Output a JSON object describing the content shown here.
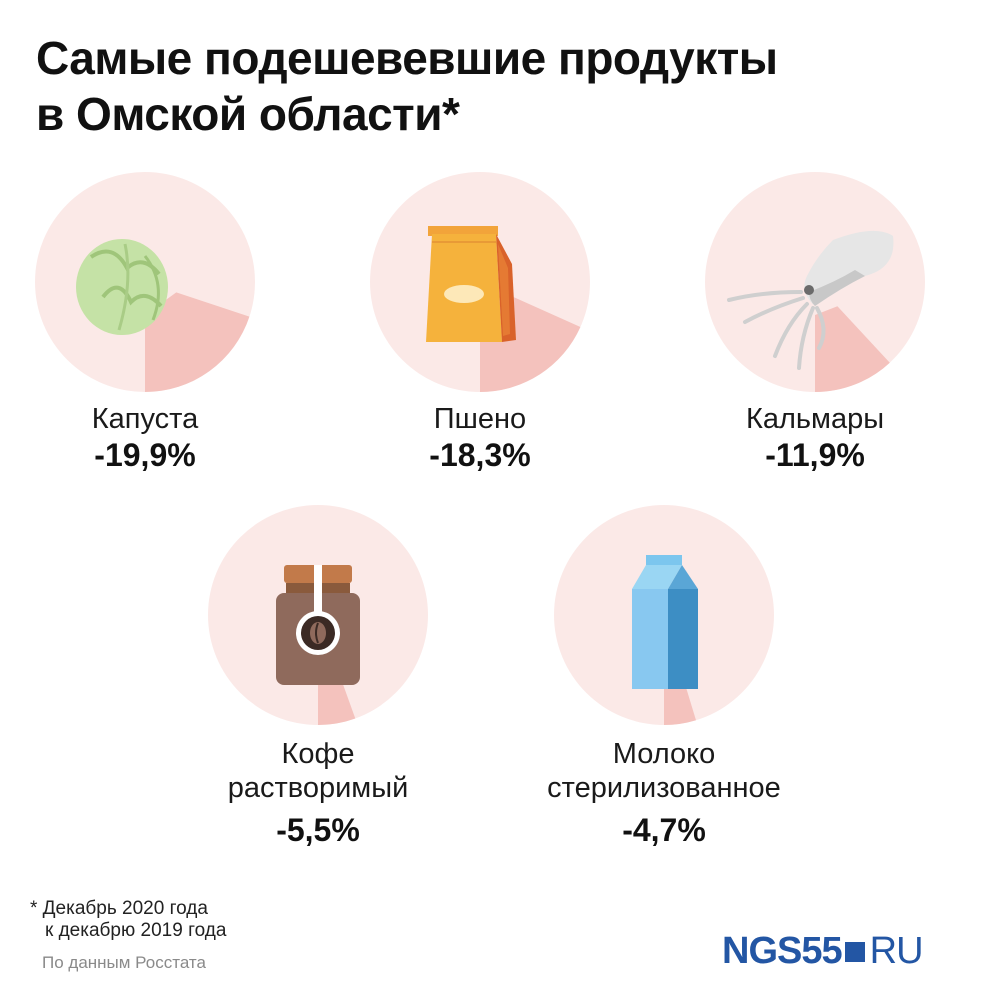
{
  "main_title": {
    "line1": "Самые подешевевшие продукты",
    "line2": "в Омской области*"
  },
  "colors": {
    "circle": "#fbe9e7",
    "wedge": "#f4c2bd",
    "logo": "#2356a4"
  },
  "chart_data": {
    "type": "pie",
    "items": [
      {
        "name": "Капуста",
        "name2": "",
        "value_label": "-19,9%",
        "percent": 19.9,
        "icon": "cabbage-icon"
      },
      {
        "name": "Пшено",
        "name2": "",
        "value_label": "-18,3%",
        "percent": 18.3,
        "icon": "millet-bag-icon"
      },
      {
        "name": "Кальмары",
        "name2": "",
        "value_label": "-11,9%",
        "percent": 11.9,
        "icon": "squid-icon"
      },
      {
        "name": "Кофе",
        "name2": "растворимый",
        "value_label": "-5,5%",
        "percent": 5.5,
        "icon": "coffee-jar-icon"
      },
      {
        "name": "Молоко",
        "name2": "стерилизованное",
        "value_label": "-4,7%",
        "percent": 4.7,
        "icon": "milk-carton-icon"
      }
    ]
  },
  "footnote": {
    "line1": "* Декабрь 2020 года",
    "line2": "к декабрю 2019 года"
  },
  "source": "По данным Росстата",
  "logo": {
    "brand": "NGS55",
    "tld": "RU"
  }
}
